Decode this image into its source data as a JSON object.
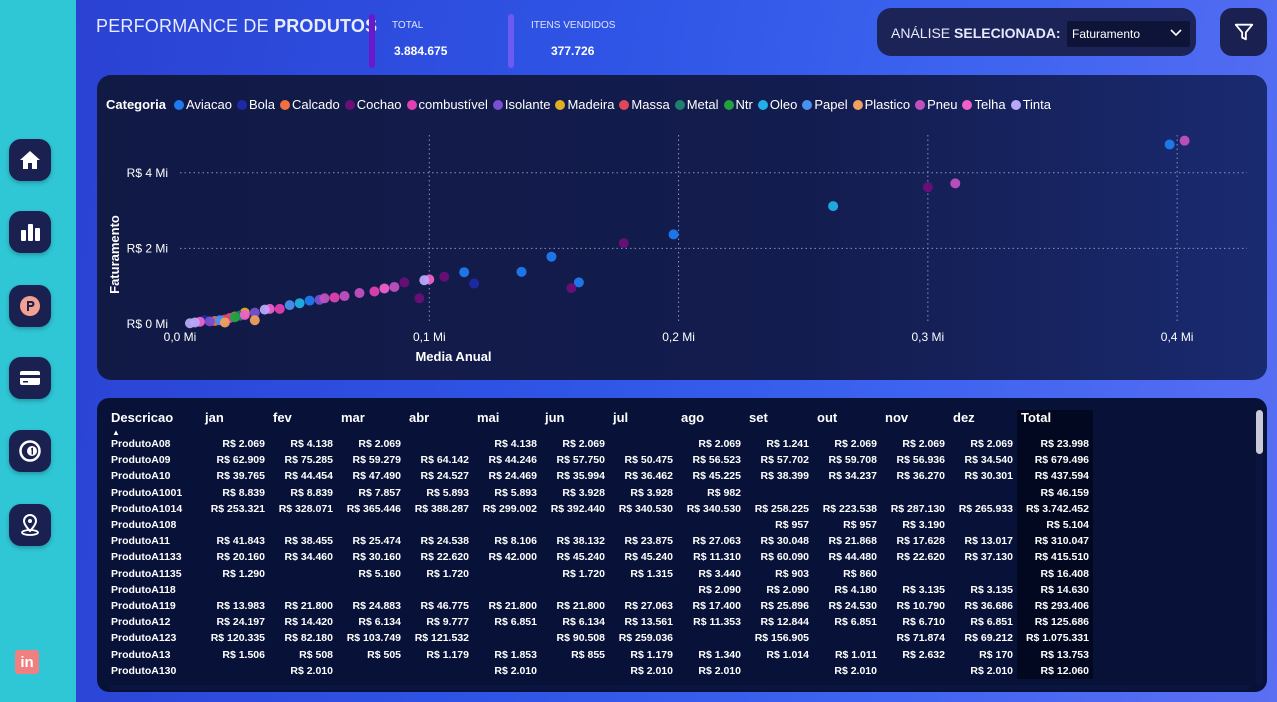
{
  "header": {
    "title_regular": "PERFORMANCE DE ",
    "title_bold": "PRODUTOS",
    "kpis": [
      {
        "label": "TOTAL",
        "value": "3.884.675",
        "bar_color": "#6a19c8"
      },
      {
        "label": "ITENS VENDIDOS",
        "value": "377.726",
        "bar_color": "#6a5cf0"
      }
    ],
    "analysis_label_regular": "ANÁLISE ",
    "analysis_label_bold": "SELECIONADA:",
    "analysis_selected": "Faturamento"
  },
  "sidebar": {
    "items": [
      {
        "icon": "home-icon"
      },
      {
        "icon": "bar-chart-icon"
      },
      {
        "icon": "p-badge-icon"
      },
      {
        "icon": "card-icon"
      },
      {
        "icon": "one-circle-icon"
      },
      {
        "icon": "location-pin-icon"
      }
    ],
    "linkedin": "in"
  },
  "chart_data": {
    "type": "scatter",
    "xlabel": "Media Anual",
    "ylabel": "Faturamento",
    "xlim": [
      0,
      0.42
    ],
    "ylim": [
      0,
      5
    ],
    "x_ticks": [
      "0,0 Mi",
      "0,1 Mi",
      "0,2 Mi",
      "0,3 Mi",
      "0,4 Mi"
    ],
    "x_tick_values": [
      0,
      0.1,
      0.2,
      0.3,
      0.4
    ],
    "y_ticks": [
      "R$ 0 Mi",
      "R$ 2 Mi",
      "R$ 4 Mi"
    ],
    "y_tick_values": [
      0,
      2,
      4
    ],
    "legend_title": "Categoria",
    "series": [
      {
        "name": "Aviacao",
        "color": "#1f7af0",
        "points": [
          [
            0.397,
            4.75
          ],
          [
            0.198,
            2.37
          ],
          [
            0.114,
            1.37
          ],
          [
            0.137,
            1.38
          ],
          [
            0.149,
            1.78
          ],
          [
            0.16,
            1.1
          ],
          [
            0.052,
            0.62
          ]
        ]
      },
      {
        "name": "Bola",
        "color": "#1c2aa8",
        "points": [
          [
            0.118,
            1.07
          ],
          [
            0.01,
            0.1
          ]
        ]
      },
      {
        "name": "Calcado",
        "color": "#f07040",
        "points": [
          [
            0.014,
            0.08
          ],
          [
            0.022,
            0.2
          ]
        ]
      },
      {
        "name": "Cochao",
        "color": "#6a0f78",
        "points": [
          [
            0.3,
            3.62
          ],
          [
            0.178,
            2.14
          ],
          [
            0.096,
            0.68
          ],
          [
            0.157,
            0.95
          ],
          [
            0.106,
            1.25
          ],
          [
            0.09,
            1.1
          ]
        ]
      },
      {
        "name": "combustível",
        "color": "#e040b0",
        "points": [
          [
            0.062,
            0.7
          ],
          [
            0.078,
            0.86
          ],
          [
            0.04,
            0.4
          ],
          [
            0.02,
            0.16
          ]
        ]
      },
      {
        "name": "Isolante",
        "color": "#7850d0",
        "points": [
          [
            0.03,
            0.3
          ],
          [
            0.056,
            0.64
          ],
          [
            0.012,
            0.07
          ]
        ]
      },
      {
        "name": "Madeira",
        "color": "#e0b020",
        "points": [
          [
            0.026,
            0.3
          ]
        ]
      },
      {
        "name": "Massa",
        "color": "#e04858",
        "points": [
          [
            0.018,
            0.12
          ]
        ]
      },
      {
        "name": "Metal",
        "color": "#208070",
        "points": [
          [
            0.024,
            0.22
          ]
        ]
      },
      {
        "name": "Ntr",
        "color": "#20a040",
        "points": [
          [
            0.022,
            0.18
          ]
        ]
      },
      {
        "name": "Oleo",
        "color": "#20b0e8",
        "points": [
          [
            0.262,
            3.12
          ],
          [
            0.048,
            0.55
          ]
        ]
      },
      {
        "name": "Papel",
        "color": "#4a90f0",
        "points": [
          [
            0.044,
            0.5
          ],
          [
            0.016,
            0.1
          ]
        ]
      },
      {
        "name": "Plastico",
        "color": "#f0a060",
        "points": [
          [
            0.03,
            0.1
          ],
          [
            0.018,
            0.04
          ]
        ]
      },
      {
        "name": "Pneu",
        "color": "#c050c0",
        "points": [
          [
            0.403,
            4.85
          ],
          [
            0.311,
            3.72
          ],
          [
            0.086,
            0.98
          ],
          [
            0.072,
            0.82
          ],
          [
            0.066,
            0.74
          ],
          [
            0.058,
            0.68
          ]
        ]
      },
      {
        "name": "Telha",
        "color": "#f060c8",
        "points": [
          [
            0.1,
            1.18
          ],
          [
            0.082,
            0.94
          ],
          [
            0.036,
            0.4
          ],
          [
            0.026,
            0.24
          ],
          [
            0.008,
            0.06
          ]
        ]
      },
      {
        "name": "Tinta",
        "color": "#b8a8f8",
        "points": [
          [
            0.098,
            1.16
          ],
          [
            0.034,
            0.38
          ],
          [
            0.004,
            0.02
          ],
          [
            0.006,
            0.04
          ]
        ]
      }
    ]
  },
  "table": {
    "columns": [
      "Descricao",
      "jan",
      "fev",
      "mar",
      "abr",
      "mai",
      "jun",
      "jul",
      "ago",
      "set",
      "out",
      "nov",
      "dez",
      "Total"
    ],
    "rows": [
      [
        "ProdutoA08",
        "R$ 2.069",
        "R$ 4.138",
        "R$ 2.069",
        "",
        "R$ 4.138",
        "R$ 2.069",
        "",
        "R$ 2.069",
        "R$ 1.241",
        "R$ 2.069",
        "R$ 2.069",
        "R$ 2.069",
        "R$ 23.998"
      ],
      [
        "ProdutoA09",
        "R$ 62.909",
        "R$ 75.285",
        "R$ 59.279",
        "R$ 64.142",
        "R$ 44.246",
        "R$ 57.750",
        "R$ 50.475",
        "R$ 56.523",
        "R$ 57.702",
        "R$ 59.708",
        "R$ 56.936",
        "R$ 34.540",
        "R$ 679.496"
      ],
      [
        "ProdutoA10",
        "R$ 39.765",
        "R$ 44.454",
        "R$ 47.490",
        "R$ 24.527",
        "R$ 24.469",
        "R$ 35.994",
        "R$ 36.462",
        "R$ 45.225",
        "R$ 38.399",
        "R$ 34.237",
        "R$ 36.270",
        "R$ 30.301",
        "R$ 437.594"
      ],
      [
        "ProdutoA1001",
        "R$ 8.839",
        "R$ 8.839",
        "R$ 7.857",
        "R$ 5.893",
        "R$ 5.893",
        "R$ 3.928",
        "R$ 3.928",
        "R$ 982",
        "",
        "",
        "",
        "",
        "R$ 46.159"
      ],
      [
        "ProdutoA1014",
        "R$ 253.321",
        "R$ 328.071",
        "R$ 365.446",
        "R$ 388.287",
        "R$ 299.002",
        "R$ 392.440",
        "R$ 340.530",
        "R$ 340.530",
        "R$ 258.225",
        "R$ 223.538",
        "R$ 287.130",
        "R$ 265.933",
        "R$ 3.742.452"
      ],
      [
        "ProdutoA108",
        "",
        "",
        "",
        "",
        "",
        "",
        "",
        "",
        "R$ 957",
        "R$ 957",
        "R$ 3.190",
        "",
        "R$ 5.104"
      ],
      [
        "ProdutoA11",
        "R$ 41.843",
        "R$ 38.455",
        "R$ 25.474",
        "R$ 24.538",
        "R$ 8.106",
        "R$ 38.132",
        "R$ 23.875",
        "R$ 27.063",
        "R$ 30.048",
        "R$ 21.868",
        "R$ 17.628",
        "R$ 13.017",
        "R$ 310.047"
      ],
      [
        "ProdutoA1133",
        "R$ 20.160",
        "R$ 34.460",
        "R$ 30.160",
        "R$ 22.620",
        "R$ 42.000",
        "R$ 45.240",
        "R$ 45.240",
        "R$ 11.310",
        "R$ 60.090",
        "R$ 44.480",
        "R$ 22.620",
        "R$ 37.130",
        "R$ 415.510"
      ],
      [
        "ProdutoA1135",
        "R$ 1.290",
        "",
        "R$ 5.160",
        "R$ 1.720",
        "",
        "R$ 1.720",
        "R$ 1.315",
        "R$ 3.440",
        "R$ 903",
        "R$ 860",
        "",
        "",
        "R$ 16.408"
      ],
      [
        "ProdutoA118",
        "",
        "",
        "",
        "",
        "",
        "",
        "",
        "R$ 2.090",
        "R$ 2.090",
        "R$ 4.180",
        "R$ 3.135",
        "R$ 3.135",
        "R$ 14.630"
      ],
      [
        "ProdutoA119",
        "R$ 13.983",
        "R$ 21.800",
        "R$ 24.883",
        "R$ 46.775",
        "R$ 21.800",
        "R$ 21.800",
        "R$ 27.063",
        "R$ 17.400",
        "R$ 25.896",
        "R$ 24.530",
        "R$ 10.790",
        "R$ 36.686",
        "R$ 293.406"
      ],
      [
        "ProdutoA12",
        "R$ 24.197",
        "R$ 14.420",
        "R$ 6.134",
        "R$ 9.777",
        "R$ 6.851",
        "R$ 6.134",
        "R$ 13.561",
        "R$ 11.353",
        "R$ 12.844",
        "R$ 6.851",
        "R$ 6.710",
        "R$ 6.851",
        "R$ 125.686"
      ],
      [
        "ProdutoA123",
        "R$ 120.335",
        "R$ 82.180",
        "R$ 103.749",
        "R$ 121.532",
        "",
        "R$ 90.508",
        "R$ 259.036",
        "",
        "R$ 156.905",
        "",
        "R$ 71.874",
        "R$ 69.212",
        "R$ 1.075.331"
      ],
      [
        "ProdutoA13",
        "R$ 1.506",
        "R$ 508",
        "R$ 505",
        "R$ 1.179",
        "R$ 1.853",
        "R$ 855",
        "R$ 1.179",
        "R$ 1.340",
        "R$ 1.014",
        "R$ 1.011",
        "R$ 2.632",
        "R$ 170",
        "R$ 13.753"
      ],
      [
        "ProdutoA130",
        "",
        "R$ 2.010",
        "",
        "",
        "R$ 2.010",
        "",
        "R$ 2.010",
        "R$ 2.010",
        "",
        "R$ 2.010",
        "",
        "R$ 2.010",
        "R$ 12.060"
      ]
    ]
  }
}
